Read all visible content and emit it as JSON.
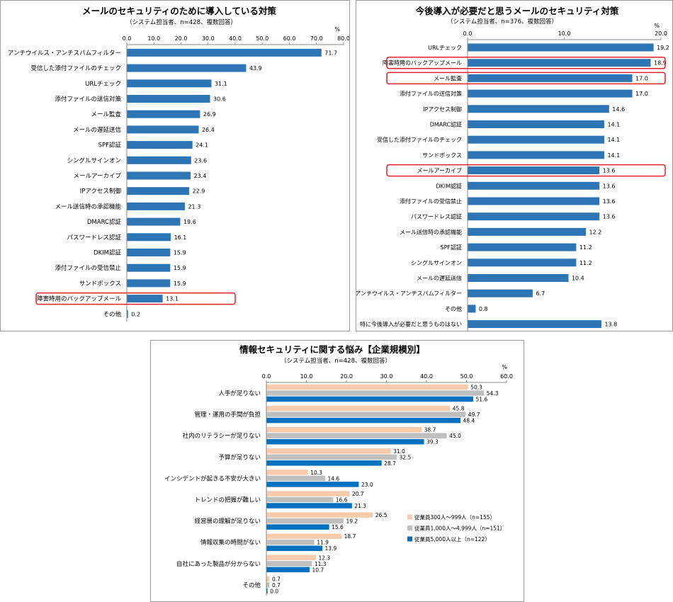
{
  "colors": {
    "bar": "#2E75B6",
    "series_300": "#F8CBAD",
    "series_1000": "#BFBFBF",
    "series_5000": "#0070C0",
    "highlight": "#E0202A"
  },
  "chart_data": [
    {
      "type": "bar",
      "orientation": "horizontal",
      "title": "メールのセキュリティのために導入している対策",
      "subtitle": "（システム担当者、n=428、複数回答）",
      "unit": "%",
      "xlim": [
        0,
        80
      ],
      "ticks": [
        "0.0",
        "10.0",
        "20.0",
        "30.0",
        "40.0",
        "50.0",
        "60.0",
        "70.0",
        "80.0"
      ],
      "categories": [
        "アンチウイルス・アンチスパムフィルター",
        "受信した添付ファイルのチェック",
        "URLチェック",
        "添付ファイルの送信対策",
        "メール監査",
        "メールの遅延送信",
        "SPF認証",
        "シングルサインオン",
        "メールアーカイブ",
        "IPアクセス制御",
        "メール送信時の承認機能",
        "DMARC認証",
        "パスワードレス認証",
        "DKIM認証",
        "添付ファイルの受信禁止",
        "サンドボックス",
        "障害時用のバックアップメール",
        "その他"
      ],
      "values": [
        71.7,
        43.9,
        31.1,
        30.6,
        26.9,
        26.4,
        24.1,
        23.6,
        23.4,
        22.9,
        21.3,
        19.6,
        16.1,
        15.9,
        15.9,
        15.9,
        13.1,
        0.2
      ],
      "value_labels": [
        "71.7",
        "43.9",
        "31.1",
        "30.6",
        "26.9",
        "26.4",
        "24.1",
        "23.6",
        "23.4",
        "22.9",
        "21.3",
        "19.6",
        "16.1",
        "15.9",
        "15.9",
        "15.9",
        "13.1",
        "0.2"
      ],
      "highlighted": [
        "障害時用のバックアップメール"
      ]
    },
    {
      "type": "bar",
      "orientation": "horizontal",
      "title": "今後導入が必要だと思うメールのセキュリティ対策",
      "subtitle": "（システム担当者、n=376、複数回答）",
      "unit": "%",
      "xlim": [
        0,
        20
      ],
      "ticks": [
        "0.0",
        "10.0",
        "20.0"
      ],
      "categories": [
        "URLチェック",
        "障害時用のバックアップメール",
        "メール監査",
        "添付ファイルの送信対策",
        "IPアクセス制御",
        "DMARC認証",
        "受信した添付ファイルのチェック",
        "サンドボックス",
        "メールアーカイブ",
        "DKIM認証",
        "添付ファイルの受信禁止",
        "パスワードレス認証",
        "メール送信時の承認機能",
        "SPF認証",
        "シングルサインオン",
        "メールの遅延送信",
        "アンチウイルス・アンチスパムフィルター",
        "その他",
        "特に今後導入が必要だと思うものはない"
      ],
      "values": [
        19.2,
        18.9,
        17.0,
        17.0,
        14.6,
        14.1,
        14.1,
        14.1,
        13.6,
        13.6,
        13.6,
        13.6,
        12.2,
        11.2,
        11.2,
        10.4,
        6.7,
        0.8,
        13.8
      ],
      "value_labels": [
        "19.2",
        "18.9",
        "17.0",
        "17.0",
        "14.6",
        "14.1",
        "14.1",
        "14.1",
        "13.6",
        "13.6",
        "13.6",
        "13.6",
        "12.2",
        "11.2",
        "11.2",
        "10.4",
        "6.7",
        "0.8",
        "13.8"
      ],
      "highlighted": [
        "障害時用のバックアップメール",
        "メール監査",
        "メールアーカイブ"
      ]
    },
    {
      "type": "bar",
      "orientation": "horizontal",
      "title": "情報セキュリティに関する悩み【企業規模別】",
      "subtitle": "（システム担当者、n=428、複数回答）",
      "unit": "%",
      "xlim": [
        0,
        60
      ],
      "ticks": [
        "0.0",
        "10.0",
        "20.0",
        "30.0",
        "40.0",
        "50.0",
        "60.0"
      ],
      "categories": [
        "人手が足りない",
        "管理・運用の手間が負担",
        "社内のリテラシーが足りない",
        "予算が足りない",
        "インシデントが起きる不安が大きい",
        "トレンドの把握が難しい",
        "経営層の理解が足りない",
        "情報収集の時間がない",
        "自社にあった製品が分からない",
        "その他"
      ],
      "series": [
        {
          "name": "従業員300人～999人（n=155）",
          "values": [
            50.3,
            45.8,
            38.7,
            31.0,
            10.3,
            20.7,
            26.5,
            18.7,
            12.3,
            0.7
          ],
          "value_labels": [
            "50.3",
            "45.8",
            "38.7",
            "31.0",
            "10.3",
            "20.7",
            "26.5",
            "18.7",
            "12.3",
            "0.7"
          ]
        },
        {
          "name": "従業員1,000人～4,999人（n=151）",
          "values": [
            54.3,
            49.7,
            45.0,
            32.5,
            14.6,
            16.6,
            19.2,
            11.9,
            11.3,
            0.7
          ],
          "value_labels": [
            "54.3",
            "49.7",
            "45.0",
            "32.5",
            "14.6",
            "16.6",
            "19.2",
            "11.9",
            "11.3",
            "0.7"
          ]
        },
        {
          "name": "従業員5,000人以上（n=122）",
          "values": [
            51.6,
            48.4,
            39.3,
            28.7,
            23.0,
            21.3,
            15.6,
            13.9,
            10.7,
            0.0
          ],
          "value_labels": [
            "51.6",
            "48.4",
            "39.3",
            "28.7",
            "23.0",
            "21.3",
            "15.6",
            "13.9",
            "10.7",
            "0.0"
          ]
        }
      ],
      "legend_position": "right"
    }
  ]
}
